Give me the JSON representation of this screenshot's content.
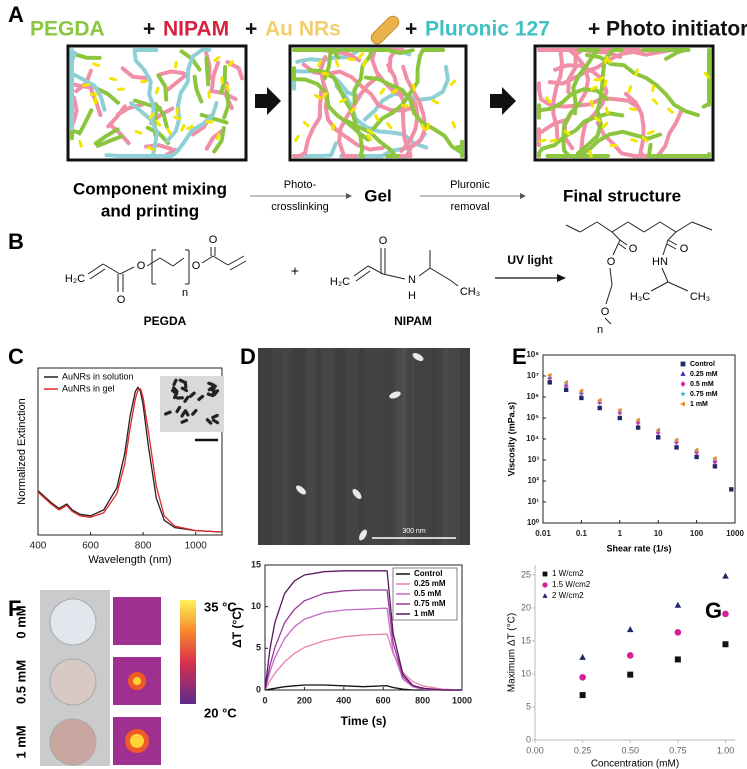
{
  "panel_a": {
    "label": "A",
    "components": [
      {
        "text": "PEGDA",
        "color": "#8cc63e"
      },
      {
        "text": "+",
        "color": "#111111"
      },
      {
        "text": "NIPAM",
        "color": "#d6213f"
      },
      {
        "text": "+",
        "color": "#111111"
      },
      {
        "text": "Au NRs",
        "color": "#f2cf6b"
      },
      {
        "text": "+",
        "color": "#111111"
      },
      {
        "text": "Pluronic 127",
        "color": "#3fc1c3"
      },
      {
        "text": "+",
        "color": "#111111"
      },
      {
        "text": "Photo initiator",
        "color": "#111111"
      }
    ],
    "stages": [
      [
        "Component mixing",
        "and printing"
      ],
      [
        "Gel"
      ],
      [
        "Final structure"
      ]
    ],
    "transitions": [
      [
        "Photo-",
        "crosslinking"
      ],
      [
        "Pluronic",
        "removal"
      ]
    ]
  },
  "panel_b": {
    "label": "B",
    "atoms": [
      "H₂C",
      "O",
      "O",
      "n",
      "O",
      "O",
      "+",
      "H₂C",
      "O",
      "N",
      "H",
      "CH₃",
      "O",
      "O",
      "HN",
      "O",
      "H₃C",
      "CH₃",
      "O",
      "n"
    ],
    "arrow_label": "UV light",
    "names": [
      "PEGDA",
      "NIPAM"
    ]
  },
  "panel_d": {
    "label": "D",
    "scale_bar": "300 nm"
  },
  "panel_f": {
    "label": "F",
    "samples": [
      "0 mM",
      "0.5 mM",
      "1 mM"
    ],
    "colorbar": [
      "35 °C",
      "20 °C"
    ]
  },
  "chart_data": [
    {
      "type": "line",
      "panel": "C",
      "xlabel": "Wavelength (nm)",
      "ylabel": "Normalized Extinction",
      "x": [
        400,
        450,
        480,
        500,
        510,
        530,
        560,
        600,
        650,
        700,
        730,
        750,
        770,
        780,
        790,
        800,
        820,
        850,
        880,
        920,
        1000,
        1100
      ],
      "xlim": [
        400,
        1100
      ],
      "ylim": [
        0,
        1.13
      ],
      "xticks": [
        400,
        600,
        800,
        1000
      ],
      "legend": "upper left",
      "series": [
        {
          "name": "AuNRs in solution",
          "color": "#222222",
          "values": [
            0.3,
            0.22,
            0.18,
            0.2,
            0.21,
            0.17,
            0.14,
            0.13,
            0.17,
            0.32,
            0.55,
            0.8,
            0.97,
            1.0,
            0.97,
            0.88,
            0.6,
            0.25,
            0.1,
            0.05,
            0.03,
            0.02
          ]
        },
        {
          "name": "AuNRs in gel",
          "color": "#e3262a",
          "values": [
            0.29,
            0.21,
            0.17,
            0.19,
            0.2,
            0.16,
            0.13,
            0.12,
            0.15,
            0.28,
            0.48,
            0.72,
            0.92,
            0.98,
            0.99,
            0.93,
            0.7,
            0.33,
            0.13,
            0.06,
            0.03,
            0.02
          ]
        }
      ]
    },
    {
      "type": "scatter",
      "panel": "E",
      "xlabel": "Shear rate (1/s)",
      "ylabel": "Viscosity (mPa.s)",
      "xscale": "log",
      "yscale": "log",
      "x": [
        0.015,
        0.04,
        0.1,
        0.3,
        1,
        3,
        10,
        30,
        100,
        300,
        800
      ],
      "xlim": [
        0.01,
        1000
      ],
      "ylim": [
        1,
        100000000
      ],
      "xticks": [
        0.01,
        0.1,
        1,
        10,
        100,
        1000
      ],
      "yticks": [
        {
          "value": 1,
          "label": "10⁰"
        },
        {
          "value": 10,
          "label": "10¹"
        },
        {
          "value": 100,
          "label": "10²"
        },
        {
          "value": 1000,
          "label": "10³"
        },
        {
          "value": 10000,
          "label": "10⁴"
        },
        {
          "value": 100000,
          "label": "10⁵"
        },
        {
          "value": 1000000,
          "label": "10⁶"
        },
        {
          "value": 10000000,
          "label": "10⁷"
        },
        {
          "value": 100000000,
          "label": "10⁸"
        }
      ],
      "legend": "upper right",
      "series": [
        {
          "name": "Control",
          "color": "#1f2a6b",
          "marker": "square",
          "values": [
            5000000,
            2200000,
            900000,
            300000,
            100000,
            35000,
            12000,
            4000,
            1400,
            500,
            40
          ]
        },
        {
          "name": "0.25 mM",
          "color": "#2a2fa8",
          "marker": "triangle",
          "values": [
            9000000,
            4000000,
            1700000,
            600000,
            200000,
            70000,
            23000,
            8000,
            2700,
            1000,
            null
          ]
        },
        {
          "name": "0.5 mM",
          "color": "#d12ab0",
          "marker": "diamond",
          "values": [
            8000000,
            3500000,
            1500000,
            550000,
            180000,
            60000,
            20000,
            7000,
            2300,
            800,
            null
          ]
        },
        {
          "name": "0.75 mM",
          "color": "#35b6d6",
          "marker": "star",
          "values": [
            10000000,
            4500000,
            1800000,
            650000,
            220000,
            75000,
            25000,
            8500,
            2800,
            1100,
            null
          ]
        },
        {
          "name": "1 mM",
          "color": "#f08a2c",
          "marker": "triangle-left",
          "values": [
            11000000,
            5000000,
            2000000,
            700000,
            240000,
            80000,
            27000,
            9000,
            3000,
            1200,
            null
          ]
        }
      ]
    },
    {
      "type": "line",
      "panel": "F",
      "xlabel": "Time (s)",
      "ylabel": "ΔT (°C)",
      "x": [
        0,
        25,
        50,
        100,
        150,
        200,
        300,
        400,
        500,
        600,
        620,
        650,
        700,
        750,
        800,
        900,
        1000
      ],
      "xlim": [
        0,
        1000
      ],
      "ylim": [
        0,
        15
      ],
      "xticks": [
        0,
        200,
        400,
        600,
        800,
        1000
      ],
      "yticks": [
        0,
        5,
        10,
        15
      ],
      "legend": "upper right",
      "series": [
        {
          "name": "Control",
          "color": "#111111",
          "values": [
            0,
            0.1,
            0.2,
            0.4,
            0.5,
            0.6,
            0.6,
            0.5,
            0.4,
            0.5,
            0.5,
            0.3,
            0.1,
            0,
            0,
            0,
            0
          ]
        },
        {
          "name": "0.25 mM",
          "color": "#ec7fb0",
          "values": [
            0,
            1.1,
            2.0,
            3.4,
            4.4,
            5.1,
            5.9,
            6.4,
            6.6,
            6.7,
            6.7,
            4.4,
            2.1,
            1.0,
            0.5,
            0.1,
            0
          ]
        },
        {
          "name": "0.5 mM",
          "color": "#c36cc7",
          "values": [
            0,
            2.2,
            3.9,
            6.2,
            7.6,
            8.5,
            9.3,
            9.6,
            9.7,
            9.8,
            9.8,
            4.6,
            1.3,
            0.4,
            0.1,
            0,
            0
          ]
        },
        {
          "name": "0.75 mM",
          "color": "#9a3a9c",
          "values": [
            0,
            2.9,
            5.1,
            8.1,
            9.7,
            10.7,
            11.6,
            11.9,
            12,
            12,
            12,
            5.7,
            1.6,
            0.5,
            0.2,
            0,
            0
          ]
        },
        {
          "name": "1 mM",
          "color": "#5a1760",
          "values": [
            0,
            4.9,
            8.1,
            11.6,
            13.1,
            13.8,
            14.2,
            14.3,
            14.3,
            14.3,
            14.3,
            6.8,
            1.9,
            0.55,
            0.2,
            0,
            0
          ]
        }
      ]
    },
    {
      "type": "scatter",
      "panel": "G",
      "xlabel": "Concentration (mM)",
      "ylabel": "Maximum ΔT (°C)",
      "x": [
        0.25,
        0.5,
        0.75,
        1.0
      ],
      "xlim": [
        0,
        1.05
      ],
      "ylim": [
        0,
        26.5
      ],
      "xticks": [
        {
          "value": 0,
          "label": "0.00"
        },
        {
          "value": 0.25,
          "label": "0.25"
        },
        {
          "value": 0.5,
          "label": "0.50"
        },
        {
          "value": 0.75,
          "label": "0.75"
        },
        {
          "value": 1.0,
          "label": "1.00"
        }
      ],
      "yticks": [
        0,
        5,
        10,
        15,
        20,
        25
      ],
      "legend": "upper left",
      "series": [
        {
          "name": "1 W/cm2",
          "color": "#111111",
          "marker": "square",
          "values": [
            6.8,
            9.9,
            12.2,
            14.5
          ]
        },
        {
          "name": "1.5 W/cm2",
          "color": "#d0209a",
          "marker": "circle",
          "values": [
            9.5,
            12.8,
            16.3,
            19.1
          ]
        },
        {
          "name": "2 W/cm2",
          "color": "#1f2a6b",
          "marker": "triangle",
          "values": [
            12.5,
            16.7,
            20.4,
            24.8
          ]
        }
      ]
    }
  ]
}
